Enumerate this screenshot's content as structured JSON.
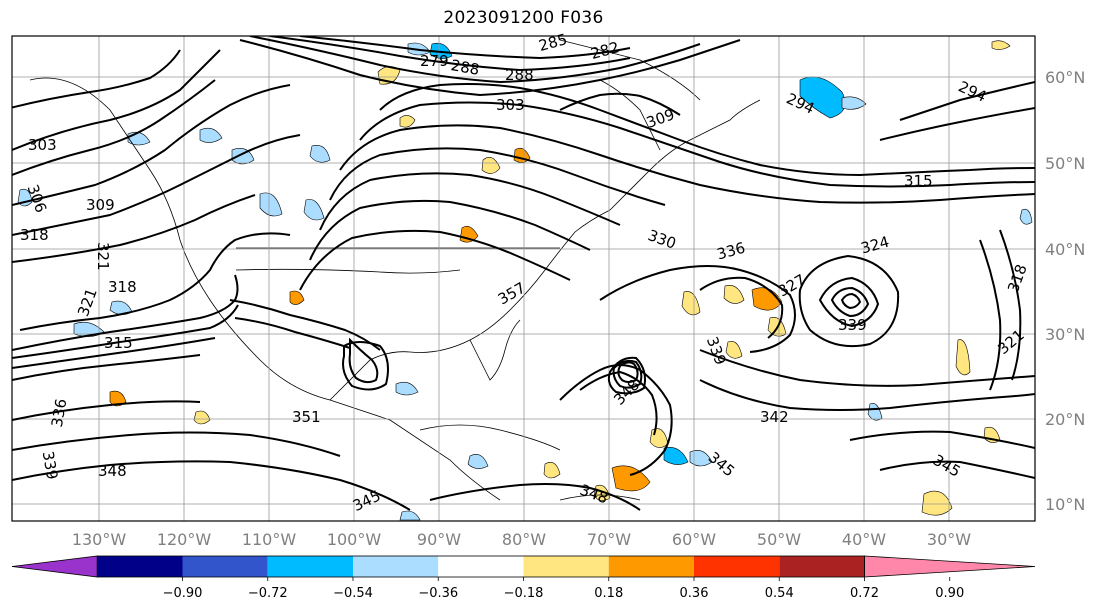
{
  "title": "2023091200 F036",
  "lat_labels": [
    "60°N",
    "50°N",
    "40°N",
    "30°N",
    "20°N",
    "10°N"
  ],
  "lon_labels": [
    "130°W",
    "120°W",
    "110°W",
    "100°W",
    "90°W",
    "80°W",
    "70°W",
    "60°W",
    "50°W",
    "40°W",
    "30°W"
  ],
  "contour_labels": [
    "303",
    "306",
    "309",
    "318",
    "321",
    "321",
    "318",
    "315",
    "336",
    "339",
    "348",
    "345",
    "288",
    "288",
    "285",
    "279",
    "282",
    "303",
    "309",
    "315",
    "294",
    "294",
    "330",
    "336",
    "327",
    "324",
    "339",
    "339",
    "348",
    "342",
    "345",
    "321",
    "345",
    "318",
    "351",
    "357",
    "348"
  ],
  "colorbar": {
    "ticks": [
      "−0.90",
      "−0.72",
      "−0.54",
      "−0.36",
      "−0.18",
      "0.18",
      "0.36",
      "0.54",
      "0.72",
      "0.90"
    ],
    "colors": [
      "#9933cc",
      "#000088",
      "#3355cc",
      "#00bbff",
      "#aaddff",
      "#ffffff",
      "#ffe680",
      "#ff9900",
      "#ff3300",
      "#aa2222",
      "#ff88aa"
    ]
  }
}
